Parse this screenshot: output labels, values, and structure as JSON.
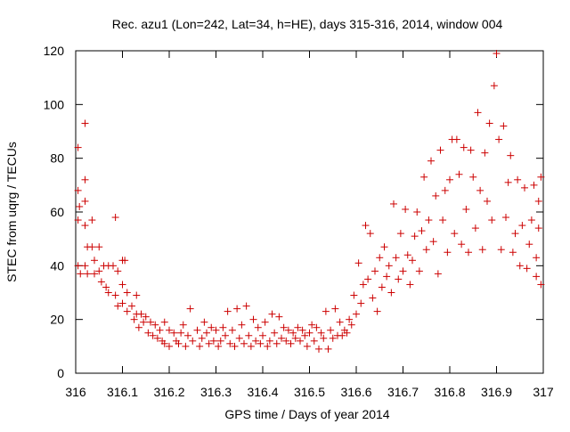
{
  "chart_data": {
    "type": "scatter",
    "title": "Rec. azu1 (Lon=242, Lat=34, h=HE), days 315-316, 2014, window 004",
    "xlabel": "GPS time / Days of year 2014",
    "ylabel": "STEC from uqrg / TECUs",
    "xlim": [
      316,
      317
    ],
    "ylim": [
      0,
      120
    ],
    "x_ticks": [
      316,
      316.1,
      316.2,
      316.3,
      316.4,
      316.5,
      316.6,
      316.7,
      316.8,
      316.9,
      317
    ],
    "x_tick_labels": [
      "316",
      "316.1",
      "316.2",
      "316.3",
      "316.4",
      "316.5",
      "316.6",
      "316.7",
      "316.8",
      "316.9",
      "317"
    ],
    "y_ticks": [
      0,
      20,
      40,
      60,
      80,
      100,
      120
    ],
    "y_tick_labels": [
      "0",
      "20",
      "40",
      "60",
      "80",
      "100",
      "120"
    ],
    "grid": false,
    "marker": "+",
    "color": "#cc0000",
    "series": [
      {
        "name": "",
        "points": [
          [
            316.005,
            84
          ],
          [
            316.005,
            68
          ],
          [
            316.005,
            57
          ],
          [
            316.005,
            40
          ],
          [
            316.008,
            62
          ],
          [
            316.01,
            37
          ],
          [
            316.02,
            93
          ],
          [
            316.02,
            72
          ],
          [
            316.02,
            64
          ],
          [
            316.02,
            55
          ],
          [
            316.025,
            47
          ],
          [
            316.02,
            40
          ],
          [
            316.025,
            37
          ],
          [
            316.035,
            57
          ],
          [
            316.035,
            47
          ],
          [
            316.04,
            42
          ],
          [
            316.04,
            37
          ],
          [
            316.05,
            47
          ],
          [
            316.05,
            38
          ],
          [
            316.055,
            34
          ],
          [
            316.06,
            40
          ],
          [
            316.065,
            32
          ],
          [
            316.07,
            40
          ],
          [
            316.07,
            30
          ],
          [
            316.08,
            40
          ],
          [
            316.085,
            58
          ],
          [
            316.085,
            29
          ],
          [
            316.09,
            38
          ],
          [
            316.09,
            25
          ],
          [
            316.1,
            42
          ],
          [
            316.1,
            33
          ],
          [
            316.1,
            26
          ],
          [
            316.105,
            42
          ],
          [
            316.11,
            30
          ],
          [
            316.11,
            23
          ],
          [
            316.12,
            25
          ],
          [
            316.125,
            20
          ],
          [
            316.13,
            29
          ],
          [
            316.13,
            22
          ],
          [
            316.135,
            17
          ],
          [
            316.14,
            22
          ],
          [
            316.145,
            19
          ],
          [
            316.15,
            21
          ],
          [
            316.155,
            15
          ],
          [
            316.16,
            19
          ],
          [
            316.165,
            14
          ],
          [
            316.17,
            18
          ],
          [
            316.175,
            13
          ],
          [
            316.18,
            16
          ],
          [
            316.185,
            12
          ],
          [
            316.19,
            19
          ],
          [
            316.19,
            11
          ],
          [
            316.2,
            16
          ],
          [
            316.2,
            10
          ],
          [
            316.21,
            15
          ],
          [
            316.215,
            12
          ],
          [
            316.22,
            11
          ],
          [
            316.225,
            15
          ],
          [
            316.23,
            18
          ],
          [
            316.235,
            10
          ],
          [
            316.24,
            14
          ],
          [
            316.245,
            24
          ],
          [
            316.25,
            12
          ],
          [
            316.26,
            16
          ],
          [
            316.265,
            10
          ],
          [
            316.27,
            13
          ],
          [
            316.275,
            19
          ],
          [
            316.28,
            15
          ],
          [
            316.285,
            11
          ],
          [
            316.29,
            17
          ],
          [
            316.295,
            12
          ],
          [
            316.3,
            16
          ],
          [
            316.305,
            10
          ],
          [
            316.31,
            12
          ],
          [
            316.315,
            17
          ],
          [
            316.32,
            14
          ],
          [
            316.325,
            23
          ],
          [
            316.33,
            11
          ],
          [
            316.335,
            16
          ],
          [
            316.34,
            10
          ],
          [
            316.345,
            24
          ],
          [
            316.35,
            13
          ],
          [
            316.355,
            18
          ],
          [
            316.36,
            11
          ],
          [
            316.365,
            25
          ],
          [
            316.37,
            14
          ],
          [
            316.375,
            10
          ],
          [
            316.38,
            20
          ],
          [
            316.385,
            12
          ],
          [
            316.39,
            17
          ],
          [
            316.395,
            11
          ],
          [
            316.4,
            14
          ],
          [
            316.405,
            19
          ],
          [
            316.41,
            10
          ],
          [
            316.415,
            12
          ],
          [
            316.42,
            22
          ],
          [
            316.425,
            15
          ],
          [
            316.43,
            11
          ],
          [
            316.435,
            21
          ],
          [
            316.44,
            13
          ],
          [
            316.445,
            17
          ],
          [
            316.45,
            12
          ],
          [
            316.455,
            16
          ],
          [
            316.46,
            11
          ],
          [
            316.465,
            15
          ],
          [
            316.47,
            13
          ],
          [
            316.475,
            17
          ],
          [
            316.48,
            12
          ],
          [
            316.485,
            16
          ],
          [
            316.49,
            14
          ],
          [
            316.495,
            10
          ],
          [
            316.5,
            15
          ],
          [
            316.505,
            18
          ],
          [
            316.51,
            12
          ],
          [
            316.515,
            17
          ],
          [
            316.52,
            9
          ],
          [
            316.525,
            15
          ],
          [
            316.53,
            13
          ],
          [
            316.535,
            23
          ],
          [
            316.54,
            9
          ],
          [
            316.545,
            16
          ],
          [
            316.55,
            13
          ],
          [
            316.555,
            24
          ],
          [
            316.56,
            14
          ],
          [
            316.565,
            19
          ],
          [
            316.57,
            14
          ],
          [
            316.575,
            16
          ],
          [
            316.58,
            15
          ],
          [
            316.585,
            20
          ],
          [
            316.59,
            18
          ],
          [
            316.595,
            29
          ],
          [
            316.6,
            22
          ],
          [
            316.605,
            41
          ],
          [
            316.61,
            26
          ],
          [
            316.615,
            33
          ],
          [
            316.62,
            55
          ],
          [
            316.625,
            35
          ],
          [
            316.63,
            52
          ],
          [
            316.635,
            28
          ],
          [
            316.64,
            38
          ],
          [
            316.645,
            23
          ],
          [
            316.65,
            43
          ],
          [
            316.655,
            32
          ],
          [
            316.66,
            47
          ],
          [
            316.665,
            36
          ],
          [
            316.67,
            40
          ],
          [
            316.675,
            30
          ],
          [
            316.68,
            63
          ],
          [
            316.685,
            43
          ],
          [
            316.69,
            35
          ],
          [
            316.695,
            52
          ],
          [
            316.7,
            38
          ],
          [
            316.705,
            61
          ],
          [
            316.71,
            44
          ],
          [
            316.715,
            33
          ],
          [
            316.72,
            42
          ],
          [
            316.725,
            51
          ],
          [
            316.73,
            60
          ],
          [
            316.735,
            38
          ],
          [
            316.74,
            53
          ],
          [
            316.745,
            73
          ],
          [
            316.75,
            46
          ],
          [
            316.755,
            57
          ],
          [
            316.76,
            79
          ],
          [
            316.765,
            49
          ],
          [
            316.77,
            66
          ],
          [
            316.775,
            37
          ],
          [
            316.78,
            83
          ],
          [
            316.785,
            57
          ],
          [
            316.79,
            68
          ],
          [
            316.795,
            45
          ],
          [
            316.8,
            72
          ],
          [
            316.805,
            87
          ],
          [
            316.81,
            52
          ],
          [
            316.815,
            87
          ],
          [
            316.82,
            74
          ],
          [
            316.825,
            48
          ],
          [
            316.83,
            84
          ],
          [
            316.835,
            61
          ],
          [
            316.84,
            45
          ],
          [
            316.845,
            83
          ],
          [
            316.85,
            73
          ],
          [
            316.855,
            54
          ],
          [
            316.86,
            97
          ],
          [
            316.865,
            68
          ],
          [
            316.87,
            46
          ],
          [
            316.875,
            82
          ],
          [
            316.88,
            64
          ],
          [
            316.885,
            93
          ],
          [
            316.89,
            57
          ],
          [
            316.895,
            107
          ],
          [
            316.9,
            119
          ],
          [
            316.905,
            87
          ],
          [
            316.91,
            46
          ],
          [
            316.915,
            92
          ],
          [
            316.92,
            58
          ],
          [
            316.925,
            71
          ],
          [
            316.93,
            81
          ],
          [
            316.935,
            45
          ],
          [
            316.94,
            52
          ],
          [
            316.945,
            72
          ],
          [
            316.95,
            40
          ],
          [
            316.955,
            55
          ],
          [
            316.96,
            69
          ],
          [
            316.965,
            39
          ],
          [
            316.97,
            48
          ],
          [
            316.975,
            57
          ],
          [
            316.98,
            70
          ],
          [
            316.985,
            36
          ],
          [
            316.99,
            64
          ],
          [
            316.995,
            73
          ],
          [
            316.995,
            33
          ],
          [
            316.99,
            54
          ],
          [
            316.985,
            43
          ]
        ]
      }
    ]
  }
}
